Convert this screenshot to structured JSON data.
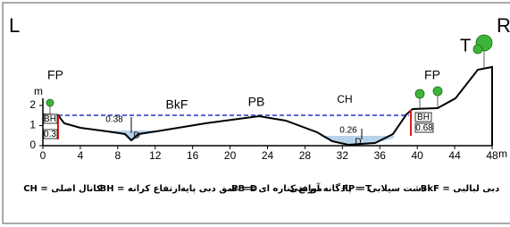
{
  "corner_labels": {
    "left": "L",
    "right": "R"
  },
  "axis": {
    "y_unit": "m",
    "x_unit": "m",
    "x_ticks": [
      "0",
      "4",
      "8",
      "12",
      "16",
      "20",
      "24",
      "28",
      "32",
      "36",
      "40",
      "44",
      "48"
    ],
    "y_ticks": [
      "0",
      "1",
      "2"
    ]
  },
  "labels": {
    "terrace": "T",
    "fp_left": "FP",
    "fp_right": "FP",
    "bkf": "BkF",
    "pb": "PB",
    "ch": "CH",
    "depth_left": "0.38",
    "d_left": "D",
    "depth_right": "0.26",
    "d_right": "D",
    "bh_left": "BH",
    "bh_left_value": "0.3",
    "bh_right": "BH",
    "bh_right_value": "0.68"
  },
  "legend": [
    "CH = کانال اصلی",
    "BH = ارتفاع کرانه",
    "عمق دبی پایه =D",
    "PB = موانع کناره ای",
    "پادگانه آبرفتی = T",
    "FP = دشت سیلابی",
    "BkF = دبی لبالبی"
  ]
}
